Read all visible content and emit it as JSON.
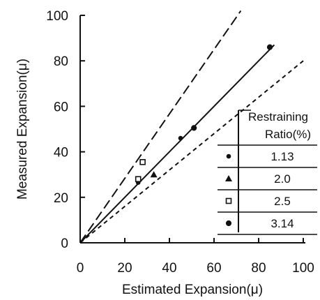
{
  "chart_data": {
    "type": "scatter",
    "title": "",
    "xlabel": "Estimated Expansion(μ)",
    "ylabel": "Measured Expansion(μ)",
    "xlim": [
      0,
      100
    ],
    "ylim": [
      0,
      100
    ],
    "xticks": [
      0,
      20,
      40,
      60,
      80,
      100
    ],
    "yticks": [
      0,
      20,
      40,
      60,
      80,
      100
    ],
    "grid": false,
    "series": [
      {
        "name": "1.13",
        "marker": "filled-circle",
        "points": [
          [
            26,
            26.5
          ],
          [
            45,
            46
          ]
        ]
      },
      {
        "name": "2.0",
        "marker": "triangle",
        "points": [
          [
            33,
            30
          ]
        ]
      },
      {
        "name": "2.5",
        "marker": "open-square",
        "points": [
          [
            26,
            28
          ],
          [
            28,
            35.5
          ]
        ]
      },
      {
        "name": "3.14",
        "marker": "circle",
        "points": [
          [
            51,
            50.5
          ],
          [
            85,
            86
          ]
        ]
      }
    ],
    "lines": [
      {
        "style": "solid",
        "points": [
          [
            0,
            0
          ],
          [
            87,
            87
          ]
        ]
      },
      {
        "style": "long-dash",
        "points": [
          [
            0,
            0
          ],
          [
            72,
            102
          ]
        ]
      },
      {
        "style": "short-dash",
        "points": [
          [
            0,
            0
          ],
          [
            100,
            80
          ]
        ]
      }
    ],
    "legend": {
      "position": "right",
      "header": [
        "Restraining",
        "Ratio(%)"
      ],
      "entries": [
        "1.13",
        "2.0",
        "2.5",
        "3.14"
      ]
    }
  }
}
